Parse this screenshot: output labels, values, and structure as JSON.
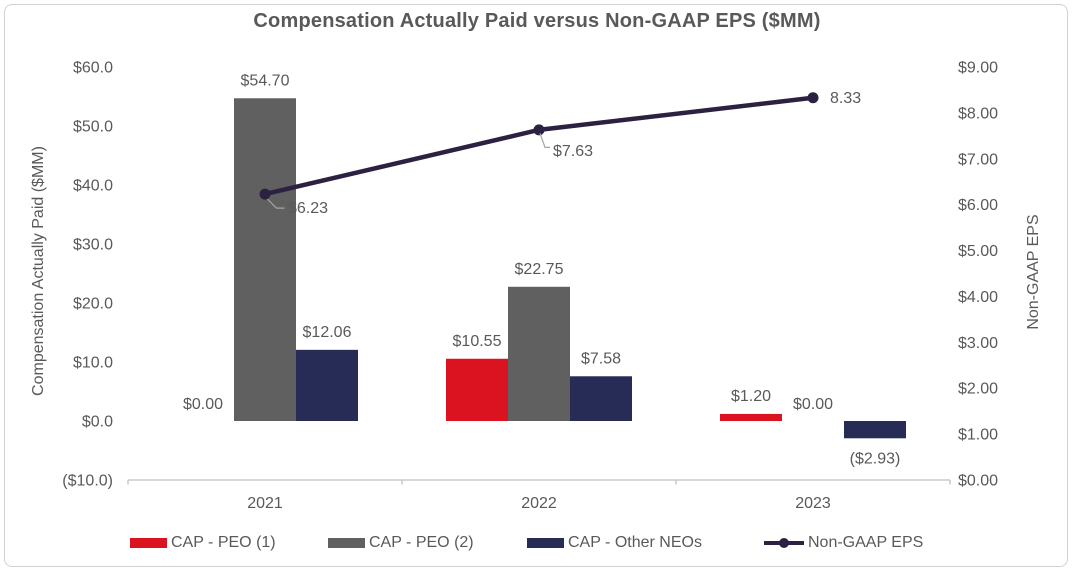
{
  "chart_data": {
    "type": "combo-bar-line",
    "title": "Compensation Actually Paid versus Non-GAAP EPS ($MM)",
    "categories": [
      "2021",
      "2022",
      "2023"
    ],
    "series": [
      {
        "name": "CAP - PEO (1)",
        "type": "bar",
        "axis": "left",
        "color": "#db1220",
        "values": [
          0,
          10.55,
          1.2
        ],
        "labels": [
          "$0.00",
          "$10.55",
          "$1.20"
        ]
      },
      {
        "name": "CAP - PEO (2)",
        "type": "bar",
        "axis": "left",
        "color": "#606060",
        "values": [
          54.7,
          22.75,
          0
        ],
        "labels": [
          "$54.70",
          "$22.75",
          "$0.00"
        ]
      },
      {
        "name": "CAP - Other NEOs",
        "type": "bar",
        "axis": "left",
        "color": "#262c55",
        "values": [
          12.06,
          7.58,
          -2.93
        ],
        "labels": [
          "$12.06",
          "$7.58",
          "($2.93)"
        ]
      },
      {
        "name": "Non-GAAP EPS",
        "type": "line",
        "axis": "right",
        "color": "#2d2142",
        "values": [
          6.23,
          7.63,
          8.33
        ],
        "labels": [
          "$6.23",
          "$7.63",
          "8.33"
        ]
      }
    ],
    "left_axis": {
      "label": "Compensation Actually Paid ($MM)",
      "min": -10,
      "max": 60,
      "ticks": [
        "$60.0",
        "$50.0",
        "$40.0",
        "$30.0",
        "$20.0",
        "$10.0",
        "$0.0",
        "($10.0)"
      ]
    },
    "right_axis": {
      "label": "Non-GAAP EPS",
      "min": 0,
      "max": 9,
      "ticks": [
        "$9.00",
        "$8.00",
        "$7.00",
        "$6.00",
        "$5.00",
        "$4.00",
        "$3.00",
        "$2.00",
        "$1.00",
        "$0.00"
      ]
    },
    "legend": {
      "position": "bottom"
    },
    "grid": "off",
    "text_color": "#595959",
    "axis_line_color": "#bfbfbf"
  }
}
